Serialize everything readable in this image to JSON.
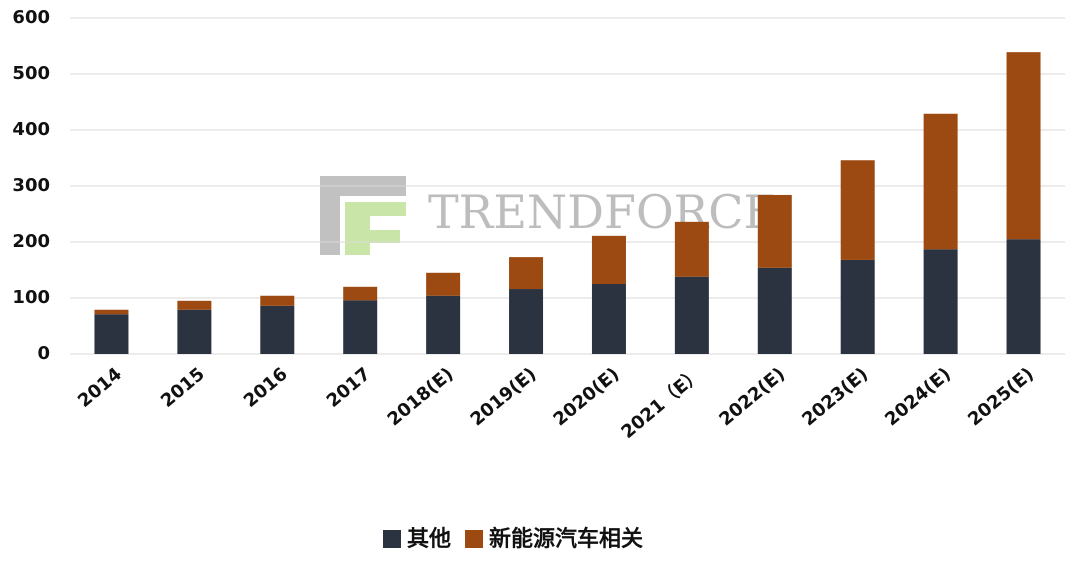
{
  "chart_data": {
    "type": "stacked-bar",
    "watermark": "TRENDFORCE",
    "categories": [
      "2014",
      "2015",
      "2016",
      "2017",
      "2018(E)",
      "2019(E)",
      "2020(E)",
      "2021（E）",
      "2022(E)",
      "2023(E)",
      "2024(E)",
      "2025(E)"
    ],
    "series": [
      {
        "name": "其他",
        "color": "#2b3340",
        "values": [
          71,
          79,
          86,
          96,
          104,
          116,
          125,
          138,
          154,
          168,
          187,
          205
        ]
      },
      {
        "name": "新能源汽车相关",
        "color": "#9c4a12",
        "values": [
          8,
          16,
          18,
          24,
          41,
          57,
          86,
          98,
          130,
          178,
          242,
          334
        ]
      }
    ],
    "ylim": [
      0,
      600
    ],
    "yticks": [
      0,
      100,
      200,
      300,
      400,
      500,
      600
    ],
    "grid": true
  }
}
